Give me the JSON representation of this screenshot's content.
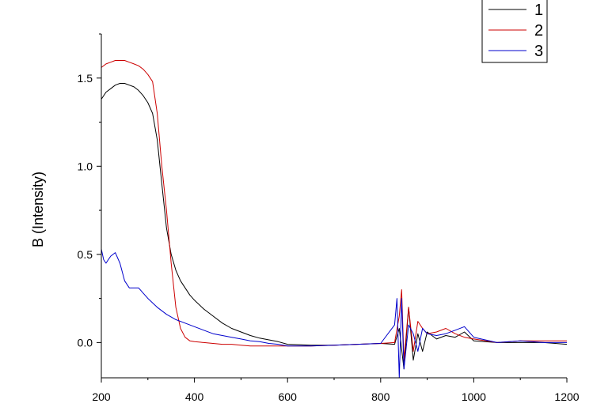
{
  "chart_data": {
    "type": "line",
    "title": "",
    "xlabel": "",
    "ylabel": "B (Intensity)",
    "xlim": [
      200,
      1200
    ],
    "ylim": [
      -0.2,
      1.75
    ],
    "xticks": [
      200,
      400,
      600,
      800,
      1000,
      1200
    ],
    "xtick_labels": [
      "200",
      "400",
      "600",
      "800",
      "1000",
      "1200"
    ],
    "yticks": [
      0.0,
      0.5,
      1.0,
      1.5
    ],
    "ytick_labels": [
      "0.0",
      "0.5",
      "1.0",
      "1.5"
    ],
    "grid": false,
    "legend_position": "top-right",
    "series": [
      {
        "name": "1",
        "color": "#000000",
        "x": [
          200,
          210,
          220,
          230,
          240,
          250,
          260,
          270,
          280,
          290,
          300,
          310,
          320,
          330,
          340,
          350,
          360,
          370,
          380,
          390,
          400,
          420,
          440,
          460,
          480,
          500,
          520,
          540,
          560,
          580,
          600,
          650,
          700,
          750,
          800,
          830,
          840,
          850,
          860,
          870,
          880,
          890,
          900,
          920,
          940,
          960,
          980,
          1000,
          1050,
          1100,
          1150,
          1200
        ],
        "y": [
          1.38,
          1.42,
          1.44,
          1.46,
          1.47,
          1.47,
          1.46,
          1.45,
          1.43,
          1.4,
          1.36,
          1.3,
          1.15,
          0.9,
          0.65,
          0.5,
          0.41,
          0.35,
          0.31,
          0.27,
          0.24,
          0.19,
          0.15,
          0.11,
          0.08,
          0.06,
          0.04,
          0.025,
          0.015,
          0.005,
          -0.01,
          -0.015,
          -0.015,
          -0.01,
          -0.005,
          -0.01,
          0.08,
          -0.15,
          0.2,
          -0.1,
          0.05,
          -0.05,
          0.06,
          0.02,
          0.04,
          0.03,
          0.06,
          0.01,
          0.0,
          0.0,
          0.0,
          -0.01
        ]
      },
      {
        "name": "2",
        "color": "#cc0000",
        "x": [
          200,
          210,
          220,
          230,
          240,
          250,
          260,
          270,
          280,
          290,
          300,
          310,
          320,
          330,
          340,
          350,
          360,
          370,
          380,
          390,
          400,
          420,
          440,
          460,
          480,
          500,
          520,
          540,
          560,
          580,
          600,
          650,
          700,
          750,
          800,
          830,
          840,
          845,
          850,
          860,
          870,
          880,
          890,
          900,
          920,
          940,
          960,
          980,
          1000,
          1050,
          1100,
          1150,
          1200
        ],
        "y": [
          1.56,
          1.58,
          1.59,
          1.6,
          1.6,
          1.6,
          1.59,
          1.58,
          1.57,
          1.55,
          1.52,
          1.48,
          1.3,
          1.0,
          0.75,
          0.45,
          0.2,
          0.08,
          0.03,
          0.01,
          0.005,
          0.0,
          -0.005,
          -0.01,
          -0.01,
          -0.015,
          -0.02,
          -0.02,
          -0.02,
          -0.02,
          -0.02,
          -0.02,
          -0.015,
          -0.01,
          -0.005,
          0.0,
          0.15,
          0.3,
          -0.1,
          0.2,
          -0.05,
          0.12,
          0.08,
          0.05,
          0.06,
          0.08,
          0.05,
          0.03,
          0.02,
          0.0,
          0.01,
          0.01,
          0.01
        ]
      },
      {
        "name": "3",
        "color": "#0000cc",
        "x": [
          200,
          205,
          210,
          215,
          220,
          230,
          240,
          250,
          260,
          270,
          280,
          290,
          300,
          320,
          340,
          360,
          380,
          400,
          420,
          440,
          460,
          480,
          500,
          520,
          540,
          560,
          580,
          600,
          650,
          700,
          750,
          800,
          830,
          835,
          840,
          845,
          850,
          860,
          870,
          880,
          890,
          900,
          920,
          940,
          960,
          980,
          1000,
          1050,
          1100,
          1150,
          1200
        ],
        "y": [
          0.53,
          0.47,
          0.45,
          0.47,
          0.49,
          0.51,
          0.45,
          0.35,
          0.31,
          0.31,
          0.31,
          0.28,
          0.25,
          0.2,
          0.16,
          0.13,
          0.11,
          0.09,
          0.07,
          0.05,
          0.04,
          0.03,
          0.02,
          0.01,
          0.005,
          -0.005,
          -0.01,
          -0.02,
          -0.02,
          -0.015,
          -0.01,
          -0.005,
          0.1,
          0.25,
          -0.2,
          0.25,
          -0.15,
          0.1,
          0.05,
          -0.05,
          0.08,
          0.05,
          0.04,
          0.05,
          0.07,
          0.09,
          0.03,
          0.0,
          0.01,
          0.0,
          0.0
        ]
      }
    ]
  }
}
